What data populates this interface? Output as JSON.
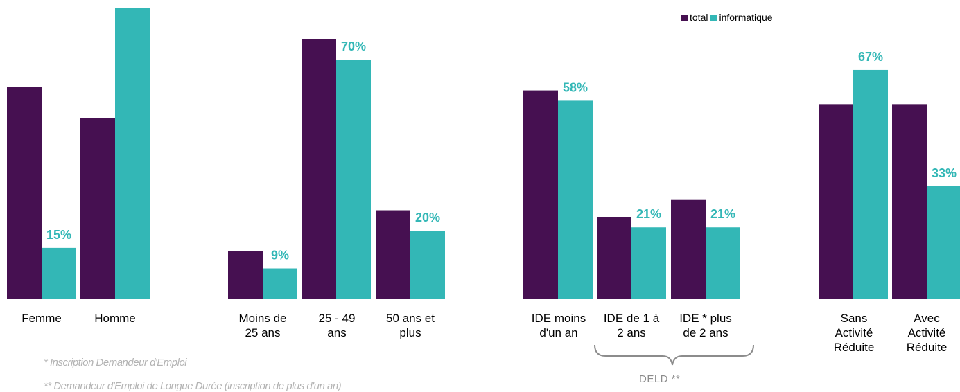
{
  "colors": {
    "total": "#461051",
    "informatique": "#33b7b6",
    "label": "#33b7b6"
  },
  "legend": [
    {
      "label": "total",
      "color": "#461051"
    },
    {
      "label": "informatique",
      "color": "#33b7b6"
    }
  ],
  "chart_data": {
    "type": "bar",
    "series_names": [
      "total",
      "informatique"
    ],
    "groups": [
      {
        "categories": [
          "Femme",
          "Homme"
        ],
        "total": [
          62,
          53
        ],
        "informatique": [
          15,
          85
        ],
        "informatique_labels": [
          "15%",
          "85%"
        ]
      },
      {
        "categories": [
          "Moins de 25 ans",
          "25 - 49 ans",
          "50 ans et plus"
        ],
        "total": [
          14,
          76
        ],
        "informatique": [
          9,
          70
        ],
        "informatique_labels": [
          "9%",
          "70%",
          "20%"
        ]
      },
      {
        "categories": [
          "IDE moins d'un an",
          "IDE de 1 à 2 ans",
          "IDE * plus de 2 ans"
        ],
        "total": [
          61,
          24,
          29
        ],
        "informatique": [
          58,
          21,
          21
        ],
        "informatique_labels": [
          "58%",
          "21%",
          "21%"
        ]
      },
      {
        "categories": [
          "Sans Activité Réduite",
          "Avec Activité Réduite"
        ],
        "total": [
          57,
          57
        ],
        "informatique": [
          67,
          33
        ],
        "informatique_labels": [
          "67%",
          "33%"
        ]
      }
    ],
    "group2_extra": {
      "total_50plus": 26,
      "informatique_50plus": 20
    },
    "ylim": [
      0,
      100
    ]
  },
  "labels": {
    "g1": [
      "Femme",
      "Homme"
    ],
    "g2": [
      "Moins de\n25 ans",
      "25 - 49\nans",
      "50 ans et\nplus"
    ],
    "g3": [
      "IDE moins\nd'un an",
      "IDE de 1 à\n2 ans",
      "IDE * plus\nde 2 ans"
    ],
    "g4": [
      "Sans\nActivité\nRéduite",
      "Avec\nActivité\nRéduite"
    ]
  },
  "notes": {
    "ide": "* Inscription Demandeur d'Emploi",
    "deld": "** Demandeur d'Emploi de Longue Durée (inscription de plus d'un an)",
    "bracket": "DELD **"
  }
}
